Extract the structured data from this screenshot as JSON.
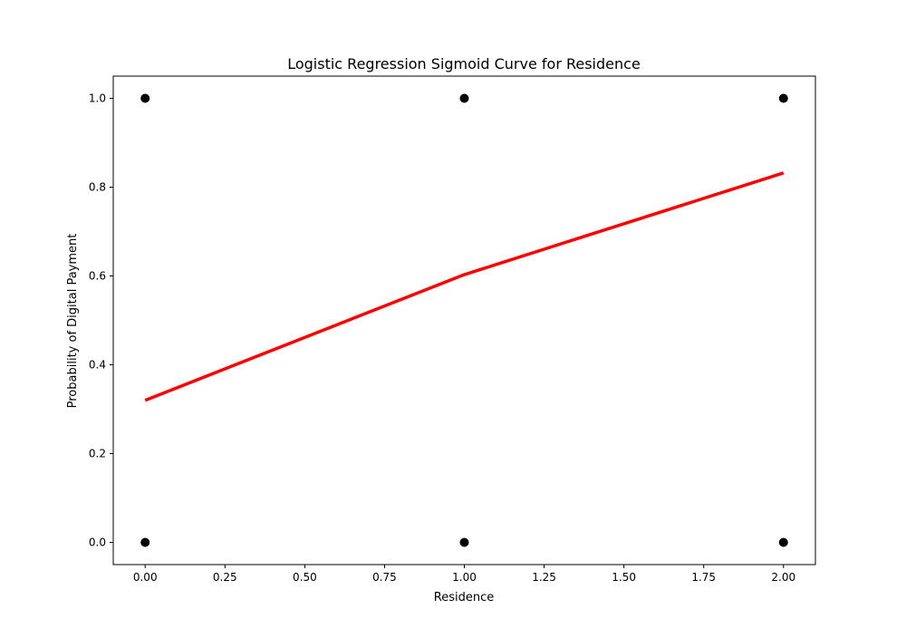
{
  "chart_data": {
    "type": "scatter",
    "title": "Logistic Regression Sigmoid Curve for Residence",
    "xlabel": "Residence",
    "ylabel": "Probability of Digital Payment",
    "xlim": [
      -0.1,
      2.1
    ],
    "ylim": [
      -0.05,
      1.05
    ],
    "xticks": [
      0.0,
      0.25,
      0.5,
      0.75,
      1.0,
      1.25,
      1.5,
      1.75,
      2.0
    ],
    "xtick_labels": [
      "0.00",
      "0.25",
      "0.50",
      "0.75",
      "1.00",
      "1.25",
      "1.50",
      "1.75",
      "2.00"
    ],
    "yticks": [
      0.0,
      0.2,
      0.4,
      0.6,
      0.8,
      1.0
    ],
    "ytick_labels": [
      "0.0",
      "0.2",
      "0.4",
      "0.6",
      "0.8",
      "1.0"
    ],
    "grid": false,
    "series": [
      {
        "kind": "scatter",
        "color": "#000000",
        "points": [
          {
            "x": 0,
            "y": 1
          },
          {
            "x": 1,
            "y": 1
          },
          {
            "x": 2,
            "y": 1
          },
          {
            "x": 0,
            "y": 0
          },
          {
            "x": 1,
            "y": 0
          },
          {
            "x": 2,
            "y": 0
          }
        ]
      },
      {
        "kind": "line",
        "color": "#ff0000",
        "points": [
          {
            "x": 0,
            "y": 0.32
          },
          {
            "x": 1,
            "y": 0.603
          },
          {
            "x": 2,
            "y": 0.832
          }
        ]
      }
    ]
  }
}
